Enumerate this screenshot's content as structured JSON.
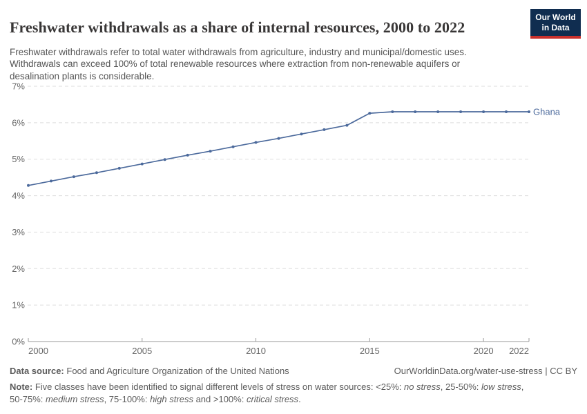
{
  "header": {
    "title": "Freshwater withdrawals as a share of internal resources, 2000 to 2022",
    "subtitle": "Freshwater withdrawals refer to total water withdrawals from agriculture, industry and municipal/domestic uses. Withdrawals can exceed 100% of total renewable resources where extraction from non-renewable aquifers or desalination plants is considerable.",
    "logo": {
      "line1": "Our World",
      "line2": "in Data",
      "bg_color": "#102D50",
      "bar_color": "#C9302C"
    }
  },
  "chart_data": {
    "type": "line",
    "title": "Freshwater withdrawals as a share of internal resources, 2000 to 2022",
    "x": [
      2000,
      2001,
      2002,
      2003,
      2004,
      2005,
      2006,
      2007,
      2008,
      2009,
      2010,
      2011,
      2012,
      2013,
      2014,
      2015,
      2016,
      2017,
      2018,
      2019,
      2020,
      2021,
      2022
    ],
    "series": [
      {
        "name": "Ghana",
        "color": "#4C6A9C",
        "values": [
          4.28,
          4.4,
          4.52,
          4.63,
          4.75,
          4.87,
          4.99,
          5.11,
          5.22,
          5.34,
          5.46,
          5.57,
          5.69,
          5.81,
          5.93,
          6.26,
          6.3,
          6.3,
          6.3,
          6.3,
          6.3,
          6.3,
          6.3
        ]
      }
    ],
    "x_ticks": [
      2000,
      2005,
      2010,
      2015,
      2020,
      2022
    ],
    "y_ticks": [
      0,
      1,
      2,
      3,
      4,
      5,
      6,
      7
    ],
    "y_tick_labels": [
      "0%",
      "1%",
      "2%",
      "3%",
      "4%",
      "5%",
      "6%",
      "7%"
    ],
    "xlim": [
      2000,
      2022
    ],
    "ylim": [
      0,
      7
    ],
    "grid": "horizontal-dashed",
    "legend_position": "line-end-label",
    "colors": {
      "gridline": "#dddddd",
      "axis": "#999999",
      "tick_label": "#666666"
    }
  },
  "footer": {
    "datasource_label": "Data source:",
    "datasource_text": "Food and Agriculture Organization of the United Nations",
    "attribution": "OurWorldinData.org/water-use-stress | CC BY",
    "note_label": "Note:",
    "note_segments": [
      {
        "text": "Five classes have been identified to signal different levels of stress on water sources: <25%: ",
        "italic": false
      },
      {
        "text": "no stress",
        "italic": true
      },
      {
        "text": ", 25-50%: ",
        "italic": false
      },
      {
        "text": "low stress",
        "italic": true
      },
      {
        "text": ", 50-75%: ",
        "italic": false
      },
      {
        "text": "medium stress",
        "italic": true
      },
      {
        "text": ", 75-100%: ",
        "italic": false
      },
      {
        "text": "high stress",
        "italic": true
      },
      {
        "text": " and >100%: ",
        "italic": false
      },
      {
        "text": "critical stress",
        "italic": true
      },
      {
        "text": ".",
        "italic": false
      }
    ]
  }
}
